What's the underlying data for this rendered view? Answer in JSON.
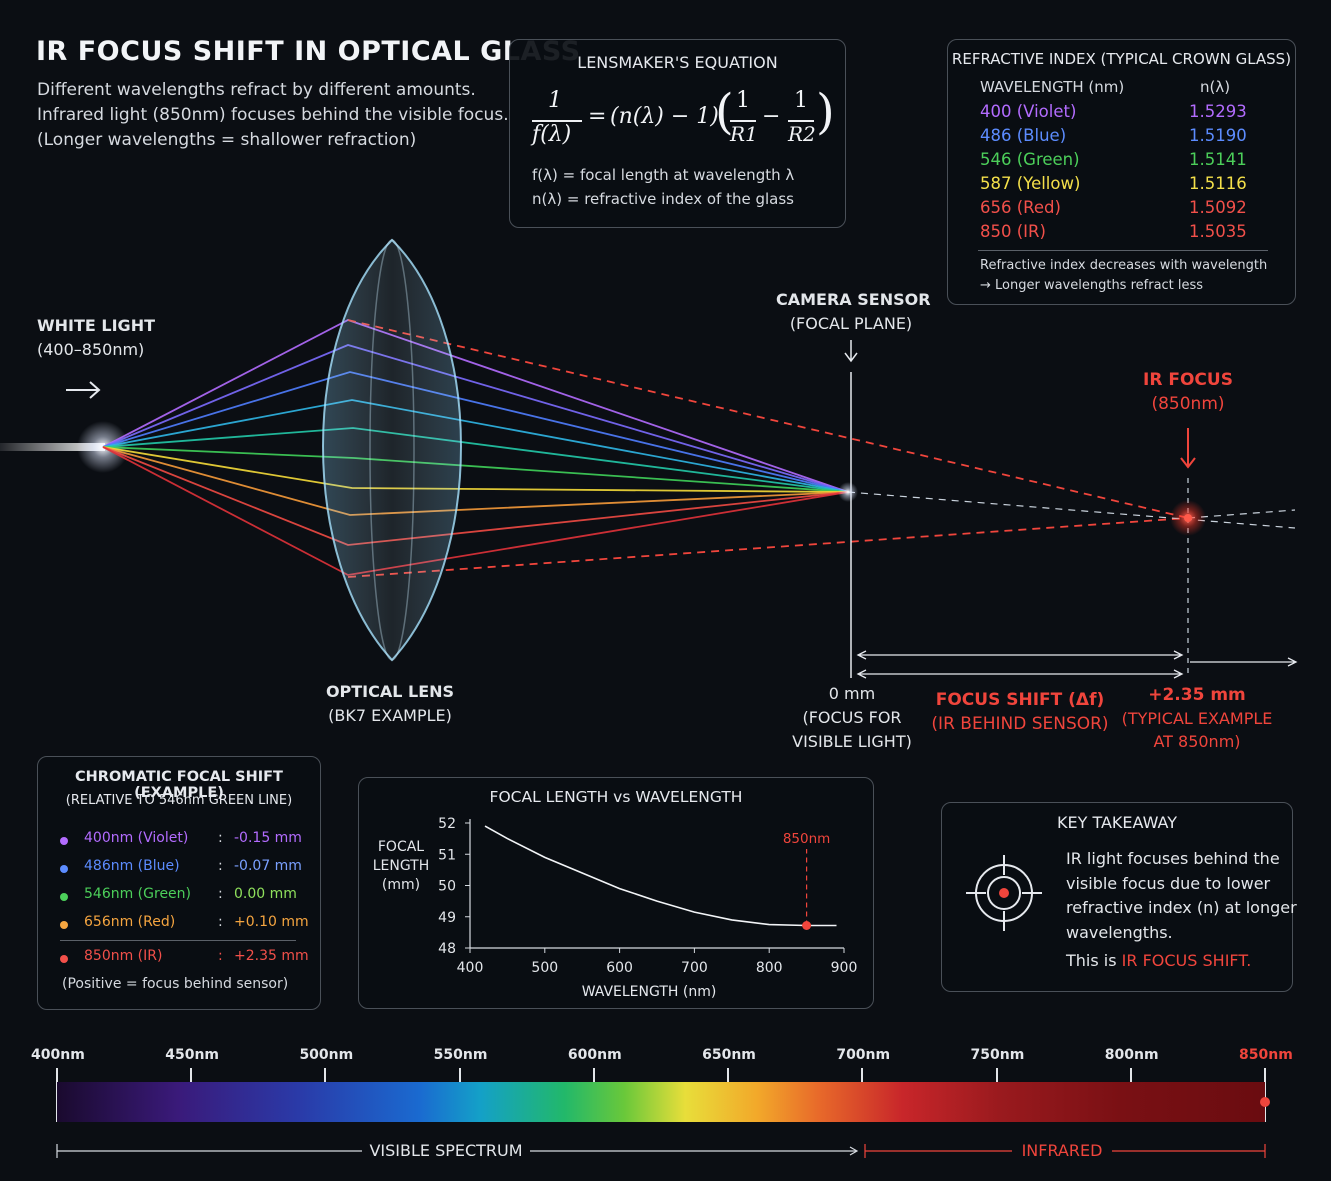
{
  "title": "IR FOCUS SHIFT IN OPTICAL GLASS",
  "subtitle": [
    "Different wavelengths refract by different amounts.",
    "Infrared light (850nm) focuses behind the visible focus.",
    "(Longer wavelengths = shallower refraction)"
  ],
  "equation_panel": {
    "title": "LENSMAKER'S EQUATION",
    "num": "1",
    "den": "f(λ)",
    "equals": "=",
    "middle": "(n(λ) − 1)",
    "r1_num": "1",
    "r1_den": "R1",
    "minus": "−",
    "r2_num": "1",
    "r2_den": "R2",
    "def1": "f(λ) = focal length at wavelength λ",
    "def2": "n(λ) = refractive index of the glass"
  },
  "index_panel": {
    "title": "REFRACTIVE INDEX (TYPICAL CROWN GLASS)",
    "col_wavelength": "WAVELENGTH (nm)",
    "col_n": "n(λ)",
    "rows": [
      {
        "wl": "400 (Violet)",
        "n": "1.5293",
        "color": "#b36cff"
      },
      {
        "wl": "486 (Blue)",
        "n": "1.5190",
        "color": "#5c8cff"
      },
      {
        "wl": "546 (Green)",
        "n": "1.5141",
        "color": "#4ccf5a"
      },
      {
        "wl": "587 (Yellow)",
        "n": "1.5116",
        "color": "#f4e04a"
      },
      {
        "wl": "656 (Red)",
        "n": "1.5092",
        "color": "#f2504a"
      },
      {
        "wl": "850 (IR)",
        "n": "1.5035",
        "color": "#f2504a"
      }
    ],
    "note1": "Refractive index decreases with wavelength",
    "note2": "→ Longer wavelengths refract less"
  },
  "labels": {
    "white_light": "WHITE LIGHT",
    "white_light_range": "(400–850nm)",
    "arrow": "→",
    "camera_sensor": "CAMERA SENSOR",
    "focal_plane": "(FOCAL PLANE)",
    "ir_focus": "IR FOCUS",
    "ir_focus_wl": "(850nm)",
    "optical_lens": "OPTICAL LENS",
    "lens_example": "(BK7 EXAMPLE)",
    "zero_mm": "0 mm",
    "zero_note1": "(FOCUS FOR",
    "zero_note2": "VISIBLE LIGHT)",
    "shift_title": "FOCUS SHIFT (Δf)",
    "shift_note": "(IR BEHIND SENSOR)",
    "shift_value": "+2.35 mm",
    "shift_value_note1": "(TYPICAL EXAMPLE",
    "shift_value_note2": "AT 850nm)"
  },
  "chromatic_panel": {
    "title": "CHROMATIC FOCAL SHIFT (EXAMPLE)",
    "subtitle": "(RELATIVE TO 546nm GREEN LINE)",
    "rows": [
      {
        "wl": "400nm (Violet)",
        "value": "-0.15 mm",
        "color": "#b36cff",
        "value_color": "#b36cff"
      },
      {
        "wl": "486nm (Blue)",
        "value": "-0.07 mm",
        "color": "#5c8cff",
        "value_color": "#7aa0ff"
      },
      {
        "wl": "546nm (Green)",
        "value": "0.00 mm",
        "color": "#4ccf5a",
        "value_color": "#8fe05c"
      },
      {
        "wl": "656nm (Red)",
        "value": "+0.10 mm",
        "color": "#f5a540",
        "value_color": "#f5a540"
      }
    ],
    "ir_row": {
      "wl": "850nm (IR)",
      "value": "+2.35 mm",
      "color": "#f2504a"
    },
    "sep": ":",
    "note": "(Positive = focus behind sensor)"
  },
  "chart_data": {
    "type": "line",
    "title": "FOCAL LENGTH vs WAVELENGTH",
    "ylabel": [
      "FOCAL",
      "LENGTH",
      "(mm)"
    ],
    "xlabel": "WAVELENGTH (nm)",
    "xlim": [
      400,
      900
    ],
    "ylim": [
      48,
      52
    ],
    "xticks": [
      400,
      500,
      600,
      700,
      800,
      900
    ],
    "yticks": [
      48,
      49,
      50,
      51,
      52
    ],
    "x": [
      420,
      450,
      500,
      550,
      600,
      650,
      700,
      750,
      800,
      850,
      890
    ],
    "y": [
      51.9,
      51.5,
      50.9,
      50.4,
      49.9,
      49.5,
      49.15,
      48.9,
      48.75,
      48.72,
      48.72
    ],
    "marker": {
      "x": 850,
      "y": 48.72,
      "label": "850nm"
    }
  },
  "takeaway": {
    "title": "KEY TAKEAWAY",
    "lines": [
      "IR light focuses behind the",
      "visible focus due to lower",
      "refractive index (n) at longer",
      "wavelengths."
    ],
    "last_prefix": "This is ",
    "last_highlight": "IR FOCUS SHIFT."
  },
  "spectrum": {
    "ticks": [
      "400nm",
      "450nm",
      "500nm",
      "550nm",
      "600nm",
      "650nm",
      "700nm",
      "750nm",
      "800nm",
      "850nm"
    ],
    "visible_label": "VISIBLE SPECTRUM",
    "infrared_label": "INFRARED"
  },
  "colors": {
    "accent_red": "#f0453c",
    "violet": "#b36cff",
    "blue": "#4f7dff",
    "green": "#3fd15a",
    "yellow": "#f5dc3a",
    "orange": "#f59a3a",
    "red": "#f04a44"
  }
}
